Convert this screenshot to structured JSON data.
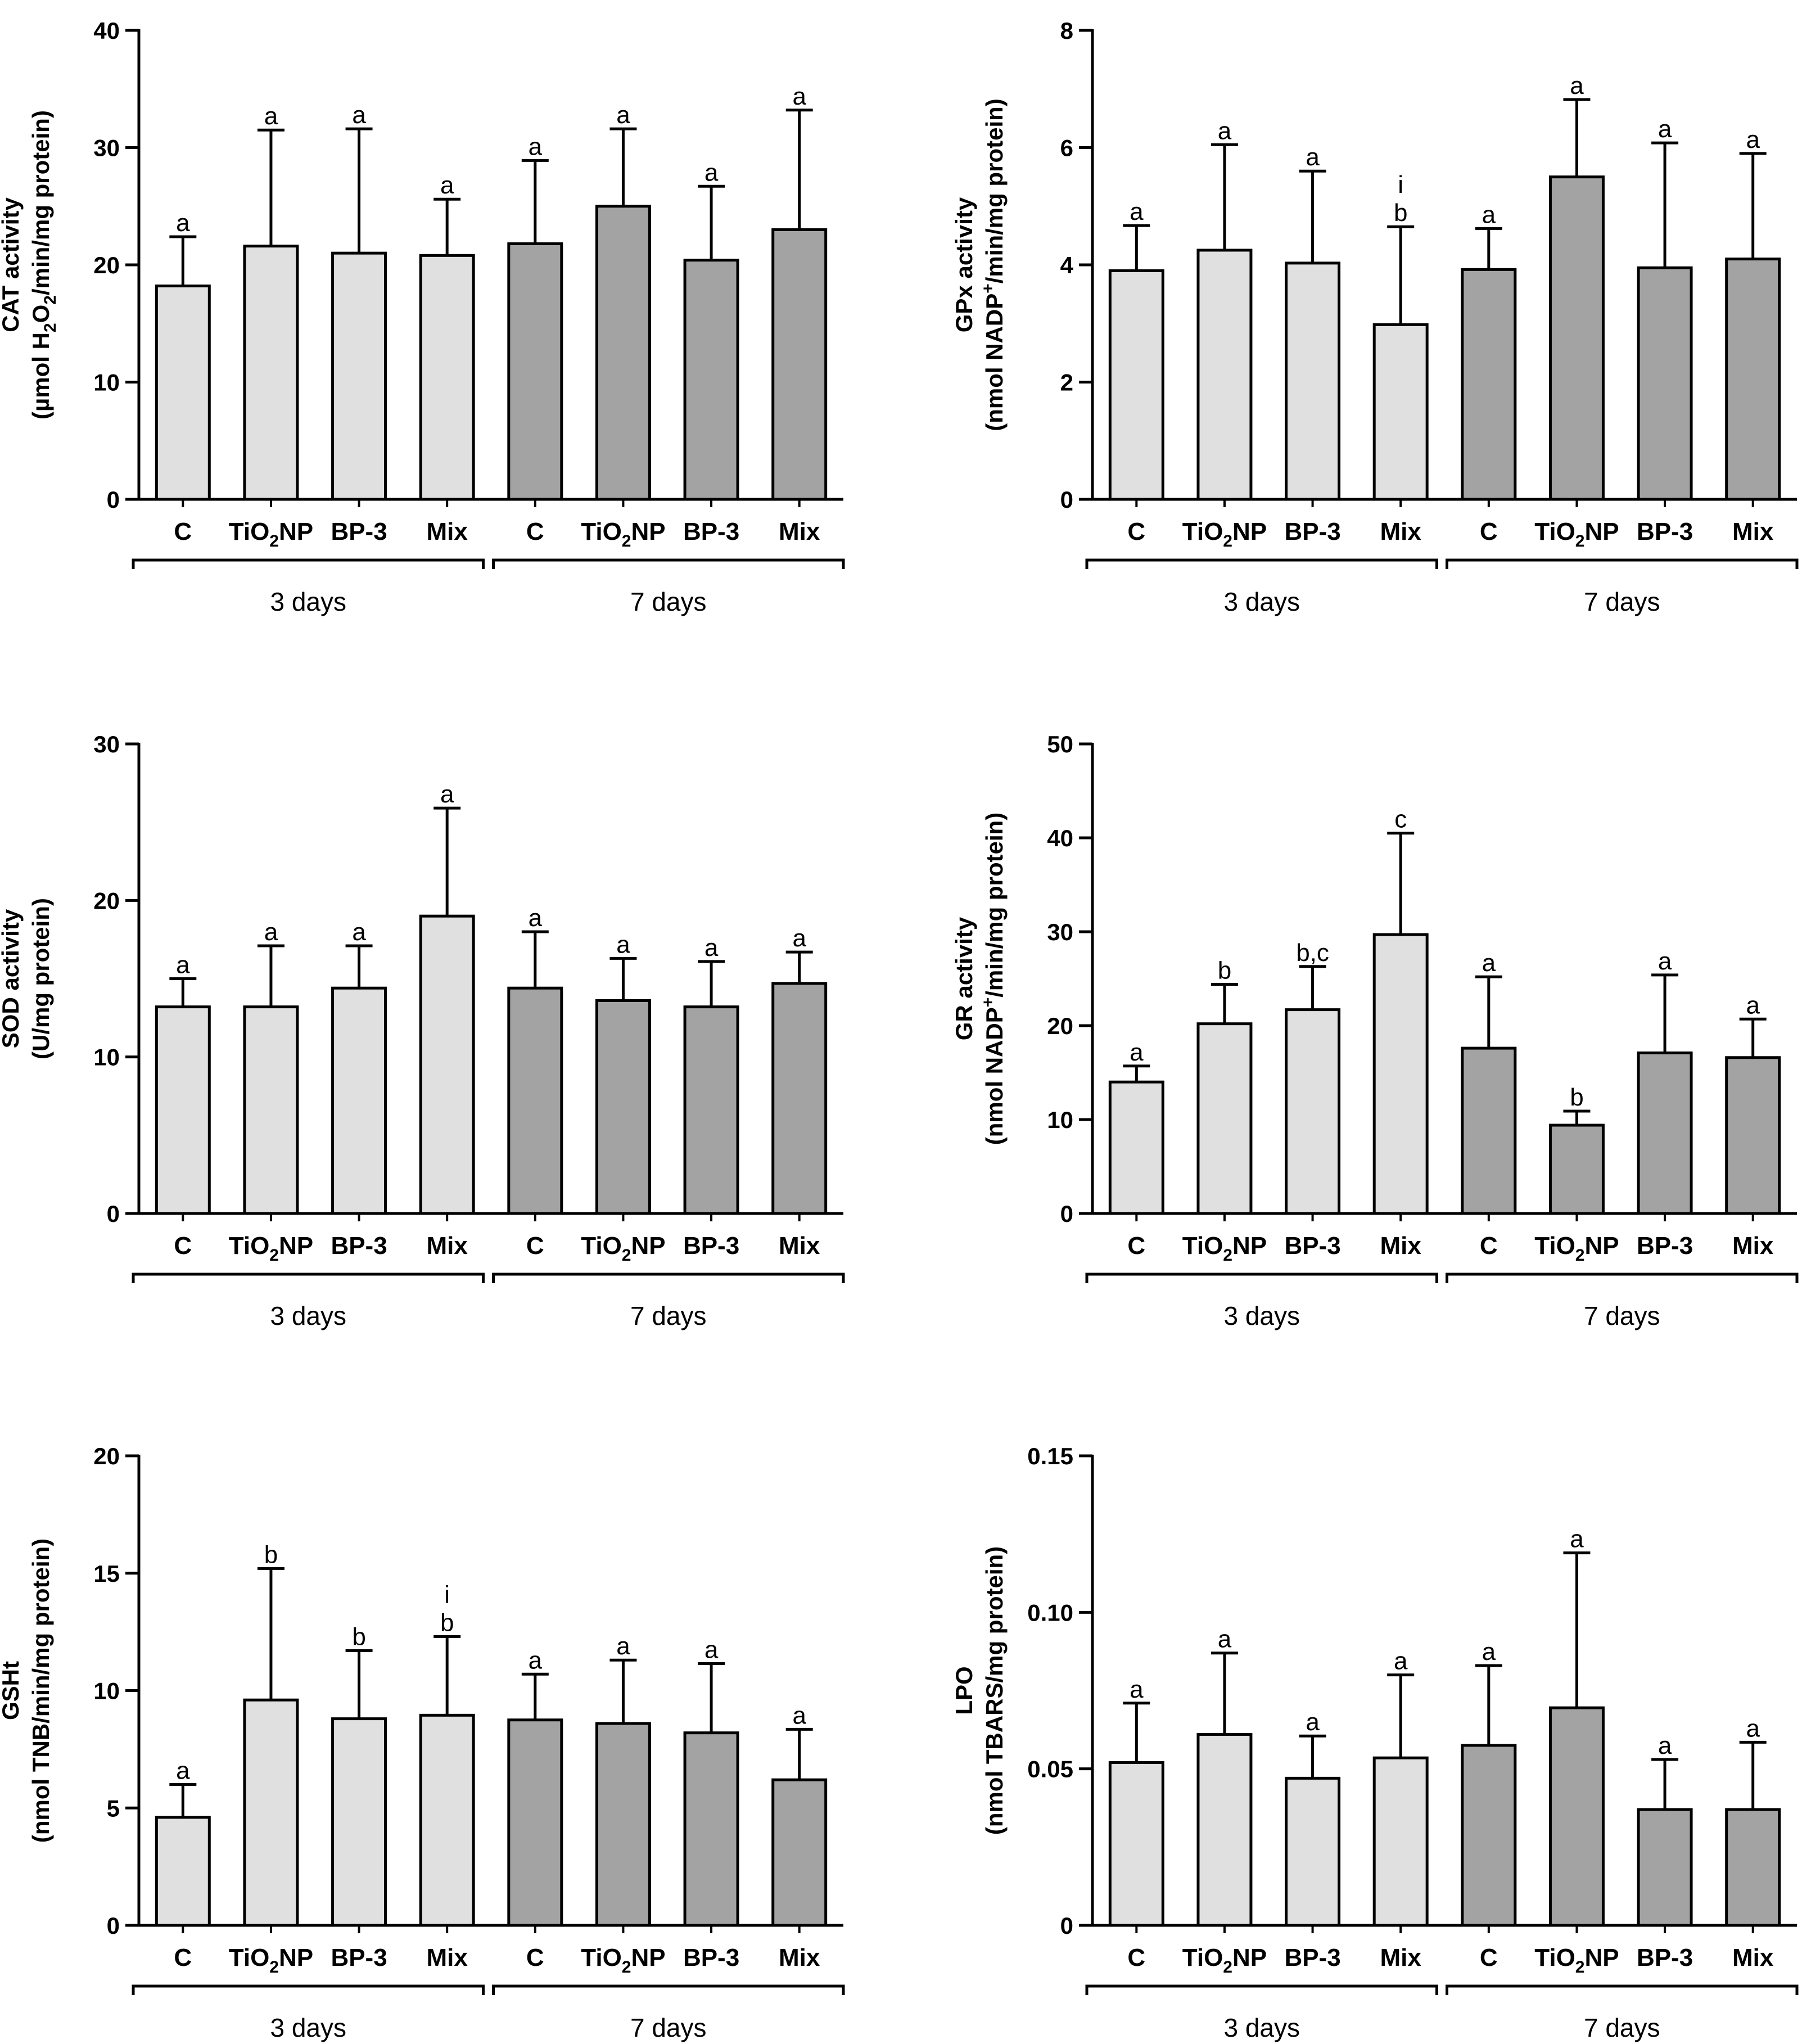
{
  "colors": {
    "light_bar": "#e0e0e0",
    "dark_bar": "#a3a3a3",
    "stroke": "#000000"
  },
  "chart_data": [
    {
      "id": "cat",
      "type": "bar",
      "ylabel_line1": "CAT activity",
      "ylabel_line2": [
        "(µmol H",
        "2",
        "O",
        "2",
        "/min/mg protein)"
      ],
      "ylim": [
        0,
        40
      ],
      "yticks": [
        0,
        10,
        20,
        30,
        40
      ],
      "ytick_labels": [
        "0",
        "10",
        "20",
        "30",
        "40"
      ],
      "categories": [
        "C",
        "TiO2NP",
        "BP-3",
        "Mix",
        "C",
        "TiO2NP",
        "BP-3",
        "Mix"
      ],
      "groups": [
        "3 days",
        "7 days"
      ],
      "values": [
        18.2,
        21.6,
        21.0,
        20.8,
        21.8,
        25.0,
        20.4,
        23.0
      ],
      "errors": [
        4.2,
        9.9,
        10.6,
        4.8,
        7.1,
        6.6,
        6.3,
        10.2
      ],
      "sig_labels": [
        [
          "a"
        ],
        [
          "a"
        ],
        [
          "a"
        ],
        [
          "a"
        ],
        [
          "a"
        ],
        [
          "a"
        ],
        [
          "a"
        ],
        [
          "a"
        ]
      ]
    },
    {
      "id": "gpx",
      "type": "bar",
      "ylabel_line1": "GPx activity",
      "ylabel_line2": [
        "(nmol NADP",
        "+",
        "/min/mg protein)"
      ],
      "ylim": [
        0,
        8
      ],
      "yticks": [
        0,
        2,
        4,
        6,
        8
      ],
      "ytick_labels": [
        "0",
        "2",
        "4",
        "6",
        "8"
      ],
      "categories": [
        "C",
        "TiO2NP",
        "BP-3",
        "Mix",
        "C",
        "TiO2NP",
        "BP-3",
        "Mix"
      ],
      "groups": [
        "3 days",
        "7 days"
      ],
      "values": [
        3.9,
        4.25,
        4.03,
        2.98,
        3.92,
        5.5,
        3.95,
        4.1
      ],
      "errors": [
        0.77,
        1.8,
        1.57,
        1.67,
        0.7,
        1.32,
        2.13,
        1.8
      ],
      "sig_labels": [
        [
          "a"
        ],
        [
          "a"
        ],
        [
          "a"
        ],
        [
          "i",
          "b"
        ],
        [
          "a"
        ],
        [
          "a"
        ],
        [
          "a"
        ],
        [
          "a"
        ]
      ]
    },
    {
      "id": "sod",
      "type": "bar",
      "ylabel_line1": "SOD activity",
      "ylabel_line2": [
        "(U/mg protein)"
      ],
      "ylim": [
        0,
        30
      ],
      "yticks": [
        0,
        10,
        20,
        30
      ],
      "ytick_labels": [
        "0",
        "10",
        "20",
        "30"
      ],
      "categories": [
        "C",
        "TiO2NP",
        "BP-3",
        "Mix",
        "C",
        "TiO2NP",
        "BP-3",
        "Mix"
      ],
      "groups": [
        "3 days",
        "7 days"
      ],
      "values": [
        13.2,
        13.2,
        14.4,
        19.0,
        14.4,
        13.6,
        13.2,
        14.7
      ],
      "errors": [
        1.8,
        3.9,
        2.7,
        6.9,
        3.6,
        2.7,
        2.9,
        2.0
      ],
      "sig_labels": [
        [
          "a"
        ],
        [
          "a"
        ],
        [
          "a"
        ],
        [
          "a"
        ],
        [
          "a"
        ],
        [
          "a"
        ],
        [
          "a"
        ],
        [
          "a"
        ]
      ]
    },
    {
      "id": "gr",
      "type": "bar",
      "ylabel_line1": "GR activity",
      "ylabel_line2": [
        "(nmol NADP",
        "+",
        "/min/mg protein)"
      ],
      "ylim": [
        0,
        50
      ],
      "yticks": [
        0,
        10,
        20,
        30,
        40,
        50
      ],
      "ytick_labels": [
        "0",
        "10",
        "20",
        "30",
        "40",
        "50"
      ],
      "categories": [
        "C",
        "TiO2NP",
        "BP-3",
        "Mix",
        "C",
        "TiO2NP",
        "BP-3",
        "Mix"
      ],
      "groups": [
        "3 days",
        "7 days"
      ],
      "values": [
        14.0,
        20.2,
        21.7,
        29.7,
        17.6,
        9.4,
        17.1,
        16.6
      ],
      "errors": [
        1.7,
        4.2,
        4.6,
        10.8,
        7.6,
        1.5,
        8.3,
        4.1
      ],
      "sig_labels": [
        [
          "a"
        ],
        [
          "b"
        ],
        [
          "b,c"
        ],
        [
          "c"
        ],
        [
          "a"
        ],
        [
          "b"
        ],
        [
          "a"
        ],
        [
          "a"
        ]
      ]
    },
    {
      "id": "gsht",
      "type": "bar",
      "ylabel_line1": "GSHt",
      "ylabel_line2": [
        "(nmol TNB/min/mg protein)"
      ],
      "ylim": [
        0,
        20
      ],
      "yticks": [
        0,
        5,
        10,
        15,
        20
      ],
      "ytick_labels": [
        "0",
        "5",
        "10",
        "15",
        "20"
      ],
      "categories": [
        "C",
        "TiO2NP",
        "BP-3",
        "Mix",
        "C",
        "TiO2NP",
        "BP-3",
        "Mix"
      ],
      "groups": [
        "3 days",
        "7 days"
      ],
      "values": [
        4.6,
        9.6,
        8.8,
        8.95,
        8.75,
        8.6,
        8.2,
        6.2
      ],
      "errors": [
        1.4,
        5.6,
        2.9,
        3.35,
        1.95,
        2.7,
        2.95,
        2.15
      ],
      "sig_labels": [
        [
          "a"
        ],
        [
          "b"
        ],
        [
          "b"
        ],
        [
          "i",
          "b"
        ],
        [
          "a"
        ],
        [
          "a"
        ],
        [
          "a"
        ],
        [
          "a"
        ]
      ]
    },
    {
      "id": "lpo",
      "type": "bar",
      "ylabel_line1": "LPO",
      "ylabel_line2": [
        "(nmol TBARS/mg protein)"
      ],
      "ylim": [
        0,
        0.15
      ],
      "yticks": [
        0,
        0.05,
        0.1,
        0.15
      ],
      "ytick_labels": [
        "0",
        "0.05",
        "0.10",
        "0.15"
      ],
      "categories": [
        "C",
        "TiO2NP",
        "BP-3",
        "Mix",
        "C",
        "TiO2NP",
        "BP-3",
        "Mix"
      ],
      "groups": [
        "3 days",
        "7 days"
      ],
      "values": [
        0.052,
        0.061,
        0.047,
        0.0535,
        0.0575,
        0.0695,
        0.037,
        0.037
      ],
      "errors": [
        0.019,
        0.026,
        0.0135,
        0.0265,
        0.0255,
        0.0495,
        0.016,
        0.0215
      ],
      "sig_labels": [
        [
          "a"
        ],
        [
          "a"
        ],
        [
          "a"
        ],
        [
          "a"
        ],
        [
          "a"
        ],
        [
          "a"
        ],
        [
          "a"
        ],
        [
          "a"
        ]
      ]
    }
  ]
}
